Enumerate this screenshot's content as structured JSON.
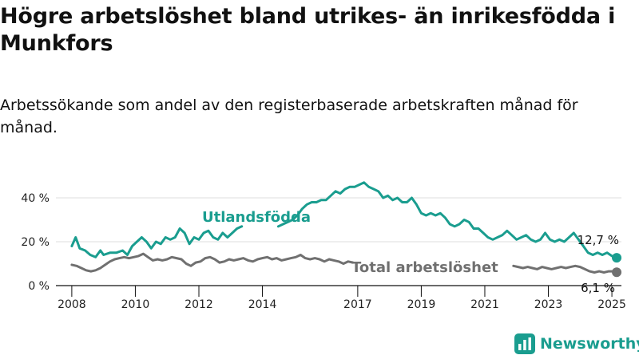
{
  "title": "Högre arbetslöshet bland utrikes- än inrikesfödda i Munkfors",
  "subtitle": "Arbetssökande som andel av den registerbaserade arbetskraften månad för månad.",
  "brand": {
    "name": "Newsworthy",
    "icon": "bar-chart-icon"
  },
  "colors": {
    "utlandsfodda": "#1a9d8f",
    "total": "#707070",
    "grid": "#dddddd",
    "axis": "#111111",
    "brand": "#1a9d8f"
  },
  "chart_data": {
    "type": "line",
    "x_unit": "year",
    "xlim": [
      2007.5,
      2025.3
    ],
    "ylim": [
      0,
      44
    ],
    "x_ticks": [
      2008,
      2010,
      2012,
      2014,
      2017,
      2019,
      2021,
      2023,
      2025
    ],
    "x_tick_labels": [
      "2008",
      "2010",
      "2012",
      "2014",
      "2017",
      "2019",
      "2021",
      "2023",
      "2025"
    ],
    "y_ticks": [
      0,
      20,
      40
    ],
    "y_tick_labels": [
      "0 %",
      "20 %",
      "40 %"
    ],
    "grid": true,
    "series": [
      {
        "name": "Utlandsfödda",
        "key": "utlandsfodda",
        "end_label": "12,7 %",
        "segments": [
          [
            [
              2008.0,
              18
            ],
            [
              2008.12,
              22
            ],
            [
              2008.25,
              17
            ],
            [
              2008.42,
              16
            ],
            [
              2008.58,
              14
            ],
            [
              2008.75,
              13
            ],
            [
              2008.9,
              16
            ],
            [
              2009.0,
              14
            ],
            [
              2009.2,
              15
            ],
            [
              2009.4,
              15
            ],
            [
              2009.6,
              16
            ],
            [
              2009.75,
              14
            ],
            [
              2009.9,
              18
            ],
            [
              2010.05,
              20
            ],
            [
              2010.2,
              22
            ],
            [
              2010.35,
              20
            ],
            [
              2010.5,
              17
            ],
            [
              2010.65,
              20
            ],
            [
              2010.8,
              19
            ],
            [
              2010.95,
              22
            ],
            [
              2011.1,
              21
            ],
            [
              2011.25,
              22
            ],
            [
              2011.4,
              26
            ],
            [
              2011.55,
              24
            ],
            [
              2011.7,
              19
            ],
            [
              2011.85,
              22
            ],
            [
              2012.0,
              21
            ],
            [
              2012.15,
              24
            ],
            [
              2012.3,
              25
            ],
            [
              2012.45,
              22
            ],
            [
              2012.6,
              21
            ],
            [
              2012.75,
              24
            ],
            [
              2012.9,
              22
            ],
            [
              2013.05,
              24
            ],
            [
              2013.2,
              26
            ],
            [
              2013.35,
              27
            ]
          ],
          [
            [
              2014.5,
              27
            ],
            [
              2014.65,
              28
            ],
            [
              2014.8,
              29
            ],
            [
              2014.95,
              30
            ],
            [
              2015.1,
              32
            ],
            [
              2015.25,
              35
            ],
            [
              2015.4,
              37
            ],
            [
              2015.55,
              38
            ],
            [
              2015.7,
              38
            ],
            [
              2015.85,
              39
            ],
            [
              2016.0,
              39
            ],
            [
              2016.15,
              41
            ],
            [
              2016.3,
              43
            ],
            [
              2016.45,
              42
            ],
            [
              2016.6,
              44
            ],
            [
              2016.75,
              45
            ],
            [
              2016.9,
              45
            ],
            [
              2017.05,
              46
            ],
            [
              2017.2,
              47
            ],
            [
              2017.35,
              45
            ],
            [
              2017.5,
              44
            ],
            [
              2017.65,
              43
            ],
            [
              2017.8,
              40
            ],
            [
              2017.95,
              41
            ],
            [
              2018.1,
              39
            ],
            [
              2018.25,
              40
            ],
            [
              2018.4,
              38
            ],
            [
              2018.55,
              38
            ],
            [
              2018.7,
              40
            ],
            [
              2018.85,
              37
            ],
            [
              2019.0,
              33
            ],
            [
              2019.15,
              32
            ],
            [
              2019.3,
              33
            ],
            [
              2019.45,
              32
            ],
            [
              2019.6,
              33
            ],
            [
              2019.75,
              31
            ],
            [
              2019.9,
              28
            ],
            [
              2020.05,
              27
            ],
            [
              2020.2,
              28
            ],
            [
              2020.35,
              30
            ],
            [
              2020.5,
              29
            ],
            [
              2020.65,
              26
            ],
            [
              2020.8,
              26
            ],
            [
              2020.95,
              24
            ],
            [
              2021.1,
              22
            ],
            [
              2021.25,
              21
            ],
            [
              2021.4,
              22
            ],
            [
              2021.55,
              23
            ],
            [
              2021.7,
              25
            ],
            [
              2021.85,
              23
            ],
            [
              2022.0,
              21
            ],
            [
              2022.15,
              22
            ],
            [
              2022.3,
              23
            ],
            [
              2022.45,
              21
            ],
            [
              2022.6,
              20
            ],
            [
              2022.75,
              21
            ],
            [
              2022.9,
              24
            ],
            [
              2023.05,
              21
            ],
            [
              2023.2,
              20
            ],
            [
              2023.35,
              21
            ],
            [
              2023.5,
              20
            ],
            [
              2023.65,
              22
            ],
            [
              2023.8,
              24
            ],
            [
              2023.95,
              21
            ],
            [
              2024.1,
              18
            ],
            [
              2024.25,
              15
            ],
            [
              2024.4,
              14
            ],
            [
              2024.55,
              15
            ],
            [
              2024.7,
              14
            ],
            [
              2024.85,
              15
            ],
            [
              2025.0,
              13.5
            ],
            [
              2025.15,
              12.7
            ]
          ]
        ]
      },
      {
        "name": "Total arbetslöshet",
        "key": "total",
        "end_label": "6,1 %",
        "segments": [
          [
            [
              2008.0,
              9.5
            ],
            [
              2008.15,
              9.0
            ],
            [
              2008.3,
              8.0
            ],
            [
              2008.45,
              7.0
            ],
            [
              2008.6,
              6.5
            ],
            [
              2008.75,
              7.0
            ],
            [
              2008.9,
              8.0
            ],
            [
              2009.05,
              9.5
            ],
            [
              2009.2,
              11
            ],
            [
              2009.35,
              12
            ],
            [
              2009.5,
              12.5
            ],
            [
              2009.65,
              13
            ],
            [
              2009.8,
              12.5
            ],
            [
              2009.95,
              13
            ],
            [
              2010.1,
              13.5
            ],
            [
              2010.25,
              14.5
            ],
            [
              2010.4,
              13
            ],
            [
              2010.55,
              11.5
            ],
            [
              2010.7,
              12
            ],
            [
              2010.85,
              11.5
            ],
            [
              2011.0,
              12
            ],
            [
              2011.15,
              13
            ],
            [
              2011.3,
              12.5
            ],
            [
              2011.45,
              12
            ],
            [
              2011.6,
              10
            ],
            [
              2011.75,
              9.0
            ],
            [
              2011.9,
              10.5
            ],
            [
              2012.05,
              11
            ],
            [
              2012.2,
              12.5
            ],
            [
              2012.35,
              13
            ],
            [
              2012.5,
              12
            ],
            [
              2012.65,
              10.5
            ],
            [
              2012.8,
              11
            ],
            [
              2012.95,
              12
            ],
            [
              2013.1,
              11.5
            ],
            [
              2013.25,
              12
            ],
            [
              2013.4,
              12.5
            ],
            [
              2013.55,
              11.5
            ],
            [
              2013.7,
              11
            ],
            [
              2013.85,
              12
            ],
            [
              2014.0,
              12.5
            ],
            [
              2014.15,
              13
            ],
            [
              2014.3,
              12
            ],
            [
              2014.45,
              12.5
            ],
            [
              2014.6,
              11.5
            ],
            [
              2014.75,
              12
            ],
            [
              2014.9,
              12.5
            ],
            [
              2015.05,
              13
            ],
            [
              2015.2,
              14
            ],
            [
              2015.35,
              12.5
            ],
            [
              2015.5,
              12
            ],
            [
              2015.65,
              12.5
            ],
            [
              2015.8,
              12
            ],
            [
              2015.95,
              11
            ],
            [
              2016.1,
              12
            ],
            [
              2016.25,
              11.5
            ],
            [
              2016.4,
              11
            ],
            [
              2016.55,
              10
            ],
            [
              2016.7,
              11
            ],
            [
              2016.85,
              10.5
            ]
          ],
          [
            [
              2021.9,
              9.0
            ],
            [
              2022.05,
              8.5
            ],
            [
              2022.2,
              8.0
            ],
            [
              2022.35,
              8.5
            ],
            [
              2022.5,
              8.0
            ],
            [
              2022.65,
              7.5
            ],
            [
              2022.8,
              8.5
            ],
            [
              2022.95,
              8.0
            ],
            [
              2023.1,
              7.5
            ],
            [
              2023.25,
              8.0
            ],
            [
              2023.4,
              8.5
            ],
            [
              2023.55,
              8.0
            ],
            [
              2023.7,
              8.5
            ],
            [
              2023.85,
              9.0
            ],
            [
              2024.0,
              8.5
            ],
            [
              2024.15,
              7.5
            ],
            [
              2024.3,
              6.5
            ],
            [
              2024.45,
              6.0
            ],
            [
              2024.6,
              6.5
            ],
            [
              2024.75,
              6.0
            ],
            [
              2024.9,
              6.5
            ],
            [
              2025.05,
              6.5
            ],
            [
              2025.15,
              6.1
            ]
          ]
        ]
      }
    ]
  }
}
